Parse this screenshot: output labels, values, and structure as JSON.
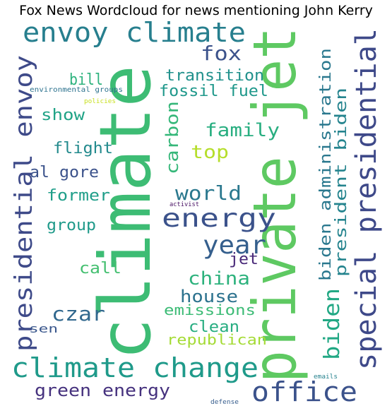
{
  "title": "Fox News Wordcloud for news mentioning John Kerry",
  "words": [
    {
      "id": "climate",
      "text": "climate",
      "color": "#3dbc74"
    },
    {
      "id": "private-jet",
      "text": "private jet",
      "color": "#5ec962"
    },
    {
      "id": "special-presidential",
      "text": "special presidential",
      "color": "#3e4989"
    },
    {
      "id": "presidential-envoy",
      "text": "presidential envoy",
      "color": "#3e4a89"
    },
    {
      "id": "envoy-climate",
      "text": "envoy climate",
      "color": "#277f8e"
    },
    {
      "id": "climate-change",
      "text": "climate change",
      "color": "#1f9a8a"
    },
    {
      "id": "office",
      "text": "office",
      "color": "#3b528b"
    },
    {
      "id": "energy",
      "text": "energy",
      "color": "#3b528b"
    },
    {
      "id": "year",
      "text": "year",
      "color": "#355f8d"
    },
    {
      "id": "biden-administration",
      "text": "biden administration",
      "color": "#2a788e"
    },
    {
      "id": "president-biden",
      "text": "president biden",
      "color": "#25848e"
    },
    {
      "id": "biden",
      "text": "biden",
      "color": "#22a884"
    },
    {
      "id": "fox",
      "text": "fox",
      "color": "#3b528b"
    },
    {
      "id": "world",
      "text": "world",
      "color": "#2a788e"
    },
    {
      "id": "family",
      "text": "family",
      "color": "#28ae80"
    },
    {
      "id": "china",
      "text": "china",
      "color": "#2db27d"
    },
    {
      "id": "green-energy",
      "text": "green energy",
      "color": "#46327e"
    },
    {
      "id": "czar",
      "text": "czar",
      "color": "#31688e"
    },
    {
      "id": "transition",
      "text": "transition",
      "color": "#21918c"
    },
    {
      "id": "fossil-fuel",
      "text": "fossil fuel",
      "color": "#1f988b"
    },
    {
      "id": "carbon",
      "text": "carbon",
      "color": "#35b779"
    },
    {
      "id": "top",
      "text": "top",
      "color": "#b5de2b"
    },
    {
      "id": "house",
      "text": "house",
      "color": "#2c728e"
    },
    {
      "id": "emissions",
      "text": "emissions",
      "color": "#3bbb75"
    },
    {
      "id": "clean",
      "text": "clean",
      "color": "#27ad81"
    },
    {
      "id": "republican",
      "text": "republican",
      "color": "#a5db36"
    },
    {
      "id": "bill",
      "text": "bill",
      "color": "#2db27d"
    },
    {
      "id": "show",
      "text": "show",
      "color": "#20a386"
    },
    {
      "id": "flight",
      "text": "flight",
      "color": "#238a8d"
    },
    {
      "id": "al-gore",
      "text": "al gore",
      "color": "#3b528b"
    },
    {
      "id": "former",
      "text": "former",
      "color": "#1f9e89"
    },
    {
      "id": "group",
      "text": "group",
      "color": "#1f9a8a"
    },
    {
      "id": "call",
      "text": "call",
      "color": "#44bf70"
    },
    {
      "id": "jet",
      "text": "jet",
      "color": "#482878"
    },
    {
      "id": "sen",
      "text": "sen",
      "color": "#39568c"
    },
    {
      "id": "environmental-groups",
      "text": "environmental groups",
      "color": "#2c728e"
    },
    {
      "id": "policies",
      "text": "policies",
      "color": "#c8e020"
    },
    {
      "id": "activist",
      "text": "activist",
      "color": "#471063"
    },
    {
      "id": "emails",
      "text": "emails",
      "color": "#26828e"
    },
    {
      "id": "defense",
      "text": "defense",
      "color": "#365d8d"
    }
  ]
}
